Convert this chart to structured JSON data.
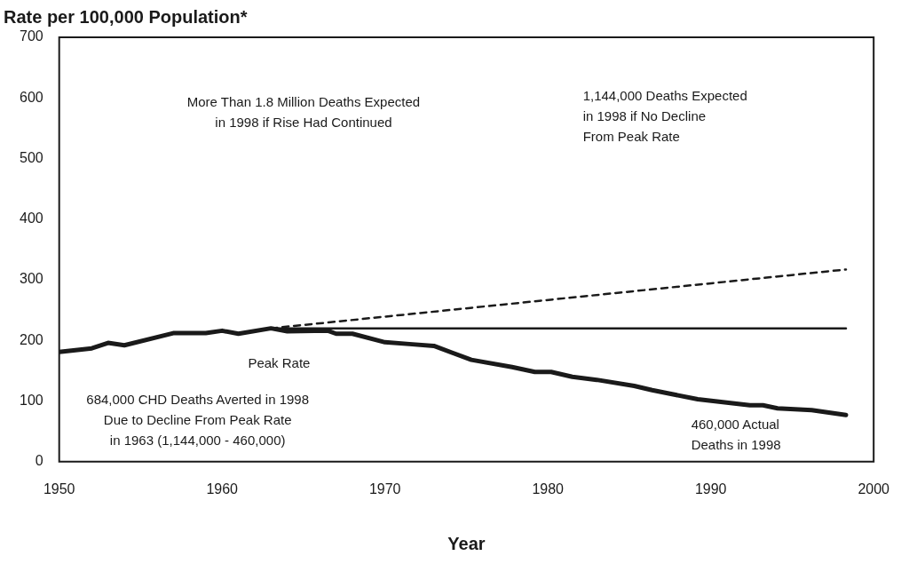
{
  "chart_data": {
    "type": "line",
    "title": "Rate per 100,000 Population*",
    "xlabel": "Year",
    "xlim": [
      1950,
      2000
    ],
    "xticks": [
      1950,
      1960,
      1970,
      1980,
      1990,
      2000
    ],
    "ylim": [
      0,
      700
    ],
    "yticks": [
      0,
      100,
      200,
      300,
      400,
      500,
      600,
      700
    ],
    "series": [
      {
        "color": "#1a1a1a",
        "line_style": "solid",
        "x": [
          1950,
          1952,
          1953,
          1954,
          1957,
          1959,
          1960,
          1961,
          1963,
          1964,
          1966.5,
          1967,
          1968,
          1970,
          1971.5,
          1973,
          1975.3,
          1977.8,
          1979.2,
          1980.2,
          1981.5,
          1983,
          1985.3,
          1986.4,
          1989.2,
          1992.4,
          1993.2,
          1994.1,
          1996.2,
          1998.3
        ],
        "values": [
          181,
          187,
          196,
          192,
          212,
          212,
          216,
          211,
          220,
          215,
          216,
          211,
          211,
          197,
          194,
          191,
          168,
          156,
          148,
          148,
          140,
          135,
          125,
          118,
          103,
          93,
          93,
          88,
          85,
          77
        ]
      },
      {
        "color": "#1a1a1a",
        "line_style": "solid",
        "x": [
          1963,
          1998.3
        ],
        "values": [
          220,
          220
        ]
      },
      {
        "color": "#1a1a1a",
        "line_style": "dashed",
        "x": [
          1963,
          1998.3
        ],
        "values": [
          220,
          317
        ]
      }
    ],
    "annotations": [
      "More Than 1.8 Million Deaths Expected\nin 1998 if Rise Had Continued",
      "1,144,000 Deaths Expected\nin 1998 if No Decline\nFrom Peak Rate",
      "Peak Rate",
      "684,000 CHD Deaths Averted in 1998\nDue to Decline From Peak Rate\nin 1963 (1,144,000 - 460,000)",
      "460,000 Actual\nDeaths in 1998"
    ]
  }
}
